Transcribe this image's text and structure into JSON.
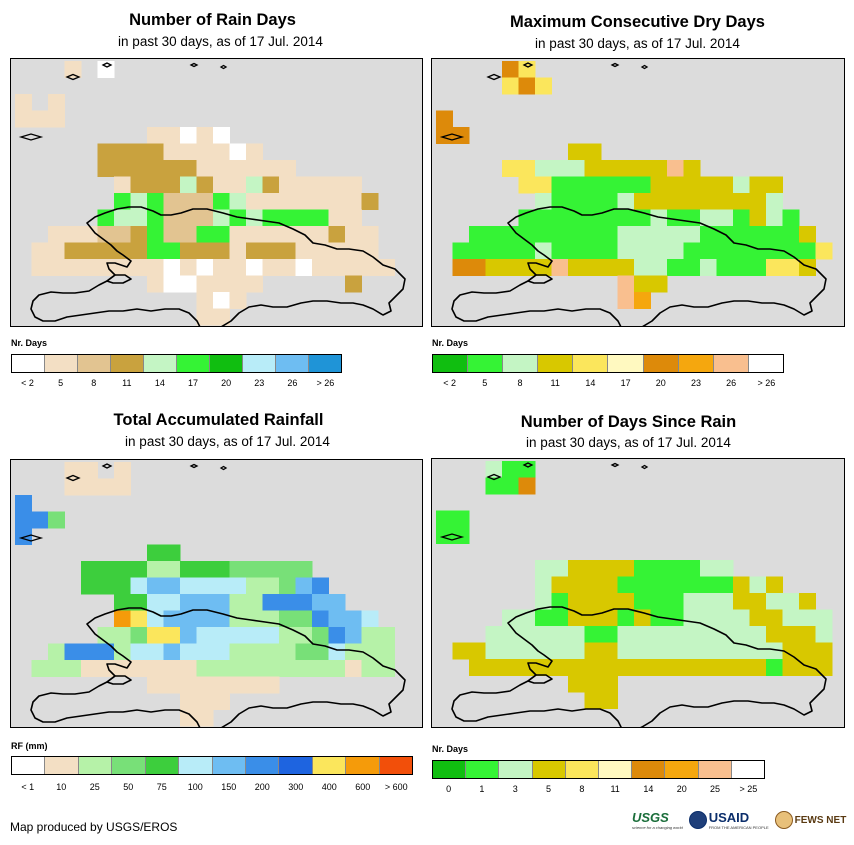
{
  "panels": [
    {
      "id": "rain-days",
      "title": "Number of Rain Days",
      "subtitle": "in past 30 days, as of 17 Jul. 2014",
      "legend": {
        "title": "Nr. Days",
        "colors": [
          "#ffffff",
          "#f3dfc4",
          "#e2c491",
          "#c9a23e",
          "#c4f5c4",
          "#35f335",
          "#10be10",
          "#b8ecf8",
          "#6ebdf2",
          "#1f94d7"
        ],
        "labels": [
          "< 2",
          "5",
          "8",
          "11",
          "14",
          "17",
          "20",
          "23",
          "26",
          "> 26"
        ]
      },
      "grid": [
        "...a.W..................",
        ".......................",
        "a.a....................",
        "aaa....................",
        "........aaWaW...........",
        ".....BBBBaaaaWa.........",
        ".....BBBBBBaaaaaa.......",
        "......aBBBgBaagBaaaaa...",
        "......GgGbbbGgaaaaaaaB..",
        ".....GggGbbbgGgGGGGaa...",
        "..aaabbBGbbGGaaaaaaBaa.",
        ".aaBBBBBGGBBBaBBBaaaaa..",
        ".aaaaaaaaWaWaaWaaWaaaaa.",
        "........aWWaaaa.....B...",
        "...........aWa..........",
        "...........aa..........."
      ]
    },
    {
      "id": "dry-days",
      "title": "Maximum Consecutive Dry Days",
      "subtitle": "in past 30 days, as of 17 Jul. 2014",
      "legend": {
        "title": "Nr. Days",
        "colors": [
          "#10be10",
          "#35f335",
          "#c4f5c4",
          "#d8c800",
          "#fbe65c",
          "#fff9c0",
          "#dd8a0a",
          "#f5a70e",
          "#f9bf8f",
          "#ffffff"
        ],
        "labels": [
          "< 2",
          "5",
          "8",
          "11",
          "14",
          "17",
          "20",
          "23",
          "26",
          "> 26"
        ]
      },
      "grid": [
        "....OY..................",
        "....YOY.................",
        "............................",
        "O.......................",
        "OO.....................",
        "........yy..............",
        "....ttcccyyyyypy........",
        ".....ttgGGGggyyyyycyy....",
        "......cGGggcyyyyyyyyc...",
        ".....GGGGGGGGcGGccgycG...",
        "..gGGGGGGGGcccccGGGGGGy..",
        ".GGgggcGGggccccGGGGGgGGtO",
        ".OOyyyypyyyyccGGcgGGtty.",
        "...........pyy.........",
        "...........po...........",
        "..........................."
      ]
    },
    {
      "id": "rainfall",
      "title": "Total Accumulated Rainfall",
      "subtitle": "in past 30 days, as of 17 Jul. 2014",
      "legend": {
        "title": "RF (mm)",
        "colors": [
          "#ffffff",
          "#f3dfc4",
          "#b6f2a8",
          "#78e078",
          "#3dce3d",
          "#b8ecf8",
          "#6ebdf2",
          "#3a8ee8",
          "#1e64e0",
          "#fbe65c",
          "#f59b0a",
          "#f24f0a"
        ],
        "labels": [
          "< 1",
          "10",
          "25",
          "50",
          "75",
          "100",
          "150",
          "200",
          "300",
          "400",
          "600",
          "> 600"
        ]
      },
      "grid": [
        "...ab.a.................",
        "...aaab................",
        "L........................",
        "LLm......................",
        "L.......................",
        "........GG..............",
        "....GGGGkkGGGmmmmm......",
        "....GGGlBBllllkkmBM.....",
        "......GGllBBBkkMMMBB....",
        "......pYlBBBBkkkmmMBBl..",
        ".....kkmYYBlllllkkmMBkk..",
        "..kMMMkllBlllkkkkmmlkkk..",
        ".kkkbbbaaaakkkkkkkkkakk..",
        "........aaaaaaaa........",
        "..........aaa...........",
        "..........aa............"
      ]
    },
    {
      "id": "since-rain",
      "title": "Number of Days Since Rain",
      "subtitle": "in past 30 days, as of 17 Jul. 2014",
      "legend": {
        "title": "Nr. Days",
        "colors": [
          "#10be10",
          "#35f335",
          "#c4f5c4",
          "#d8c800",
          "#fbe65c",
          "#fff9c0",
          "#dd8a0a",
          "#f5a70e",
          "#f9bf8f",
          "#ffffff"
        ],
        "labels": [
          "0",
          "1",
          "3",
          "5",
          "8",
          "11",
          "14",
          "20",
          "25",
          "> 25"
        ]
      },
      "grid": [
        "...cGG..............",
        "...GGO..................",
        ".........................",
        "GG.......................",
        "GG......................",
        "........................",
        "......ccyyyyGGGGgg.......",
        "......cyyyyGGGGGGGycy.....",
        "......gGyyyyGGGgggyyccy...",
        "....ggGGyyyGyGGggccyyccc..",
        "...ggggggGGgccggggggyyyc..",
        ".yyggggggyyggggggcgggyyyg.",
        "..yyyyyyyyyyyyyyyyyyGyyy..",
        "........yyy...............",
        ".........yy...............",
        "..........................."
      ]
    }
  ],
  "credit": "Map produced by USGS/EROS",
  "logos": {
    "usgs": "USGS",
    "usgs_tagline": "science for a changing world",
    "usaid": "USAID",
    "usaid_tagline": "FROM THE AMERICAN PEOPLE",
    "fews": "FEWS NET"
  },
  "cell_colors": {
    "rain-days": {
      "W": "#ffffff",
      "a": "#f3dfc4",
      "b": "#e2c491",
      "B": "#c9a23e",
      "g": "#c4f5c4",
      "G": "#35f335",
      "d": "#10be10",
      "c": "#b8ecf8"
    },
    "dry-days": {
      "O": "#dd8a0a",
      "Y": "#fbe65c",
      "y": "#d8c800",
      "t": "#fbe65c",
      "c": "#c4f5c4",
      "g": "#35f335",
      "G": "#35f335",
      "p": "#f9bf8f",
      "o": "#f5a70e"
    },
    "rainfall": {
      "a": "#f3dfc4",
      "b": "#f3dfc4",
      "L": "#3a8ee8",
      "m": "#78e078",
      "G": "#3dce3d",
      "k": "#b6f2a8",
      "l": "#b8ecf8",
      "B": "#6ebdf2",
      "M": "#3a8ee8",
      "Y": "#fbe65c",
      "p": "#f59b0a"
    },
    "since-rain": {
      "c": "#c4f5c4",
      "g": "#c4f5c4",
      "G": "#35f335",
      "O": "#dd8a0a",
      "y": "#d8c800"
    }
  }
}
